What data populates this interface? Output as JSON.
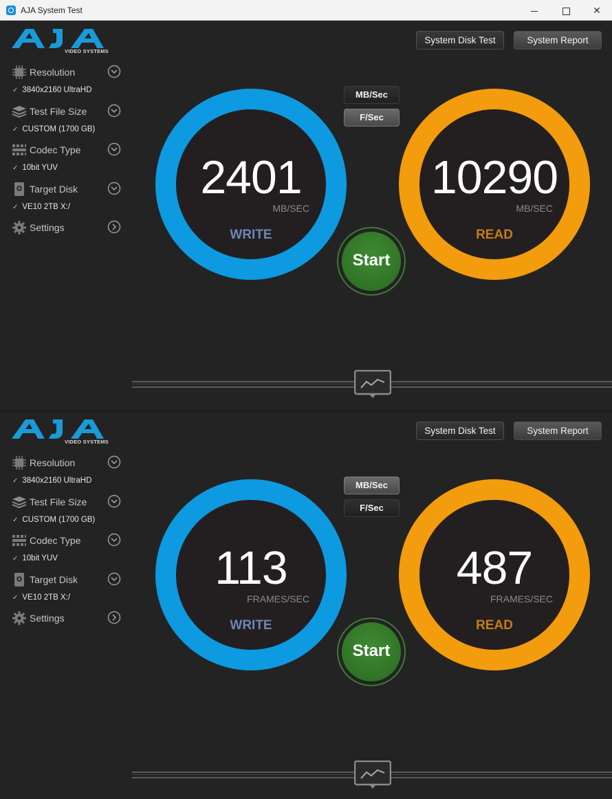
{
  "window": {
    "title": "AJA System Test",
    "controls": {
      "minimize": "minimize",
      "maximize": "maximize",
      "close": "✕"
    }
  },
  "logo": {
    "text": "AJA",
    "subtitle": "VIDEO SYSTEMS"
  },
  "toolbar": {
    "system_disk_test": "System Disk Test",
    "system_report": "System Report"
  },
  "sidebar": {
    "items": [
      {
        "label": "Resolution",
        "value": "3840x2160 UltraHD",
        "icon": "chip-icon"
      },
      {
        "label": "Test File Size",
        "value": "CUSTOM (1700 GB)",
        "icon": "layers-icon"
      },
      {
        "label": "Codec Type",
        "value": "10bit YUV",
        "icon": "grid-icon"
      },
      {
        "label": "Target Disk",
        "value": "VE10 2TB X:/",
        "icon": "disk-icon"
      },
      {
        "label": "Settings",
        "value": "",
        "icon": "gear-icon"
      }
    ]
  },
  "units": {
    "mb_sec": "MB/Sec",
    "f_sec": "F/Sec"
  },
  "start_label": "Start",
  "panels": [
    {
      "selected_unit": "F/Sec",
      "write": {
        "value": "2401",
        "unit": "MB/SEC",
        "label": "WRITE"
      },
      "read": {
        "value": "10290",
        "unit": "MB/SEC",
        "label": "READ"
      }
    },
    {
      "selected_unit": "MB/Sec",
      "write": {
        "value": "113",
        "unit": "FRAMES/SEC",
        "label": "WRITE"
      },
      "read": {
        "value": "487",
        "unit": "FRAMES/SEC",
        "label": "READ"
      }
    }
  ],
  "colors": {
    "write_ring": "#0d9ae0",
    "read_ring": "#f39c0e",
    "start_button": "#3f8a32",
    "background": "#232323"
  }
}
